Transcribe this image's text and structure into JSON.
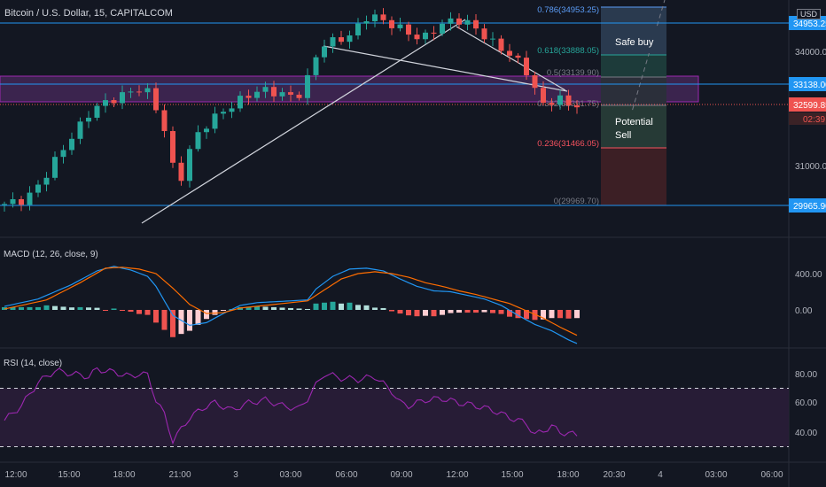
{
  "header": {
    "symbol": "Bitcoin / U.S. Dollar, 15, CAPITALCOM",
    "currency": "USD"
  },
  "price_axis": {
    "ticks": [
      "34000.00",
      "31000.00"
    ],
    "hlines": [
      {
        "label": "34953.25",
        "color": "#2196f3"
      },
      {
        "label": "33138.00",
        "color": "#2196f3"
      },
      {
        "label": "29965.90",
        "color": "#2196f3"
      }
    ],
    "last_price": {
      "label": "32599.85",
      "color": "#ef5350"
    },
    "countdown": "02:39"
  },
  "fibonacci": [
    {
      "label": "0.786(34953.25)",
      "color": "#5b9cf6"
    },
    {
      "label": "0.618(33888.05)",
      "color": "#26a69a"
    },
    {
      "label": "0.5(33139.90)",
      "color": "#787b86"
    },
    {
      "label": "0.382(32391.75)",
      "color": "#787b86"
    },
    {
      "label": "0.236(31466.05)",
      "color": "#f7525f"
    },
    {
      "label": "0(29969.70)",
      "color": "#787b86"
    }
  ],
  "annotations": {
    "safe_buy": "Safe buy",
    "potential_sell": "Potential Sell"
  },
  "macd": {
    "legend": "MACD (12, 26, close, 9)",
    "ticks": [
      "400.00",
      "0.00"
    ]
  },
  "rsi": {
    "legend": "RSI (14, close)",
    "ticks": [
      "80.00",
      "60.00",
      "40.00"
    ]
  },
  "time_axis": [
    "12:00",
    "15:00",
    "18:00",
    "21:00",
    "3",
    "03:00",
    "06:00",
    "09:00",
    "12:00",
    "15:00",
    "18:00",
    "20:30",
    "4",
    "03:00",
    "06:00"
  ],
  "colors": {
    "up": "#26a69a",
    "down": "#ef5350",
    "macd": "#2196f3",
    "signal": "#ff6d00",
    "rsi": "#9c27b0",
    "band": "#4a2a5e"
  },
  "chart_data": {
    "type": "candlestick",
    "price_path": [
      [
        0,
        29970
      ],
      [
        3,
        30100
      ],
      [
        5,
        30600
      ],
      [
        7,
        31300
      ],
      [
        9,
        31900
      ],
      [
        11,
        32500
      ],
      [
        13,
        32700
      ],
      [
        15,
        32900
      ],
      [
        17,
        33050
      ],
      [
        18,
        32800
      ],
      [
        20,
        31650
      ],
      [
        21,
        30300
      ],
      [
        22,
        31100
      ],
      [
        23,
        31700
      ],
      [
        25,
        32200
      ],
      [
        27,
        32500
      ],
      [
        29,
        32800
      ],
      [
        31,
        33000
      ],
      [
        33,
        32900
      ],
      [
        35,
        32800
      ],
      [
        36,
        32950
      ],
      [
        37,
        33600
      ],
      [
        38,
        34150
      ],
      [
        40,
        34300
      ],
      [
        42,
        34450
      ],
      [
        43,
        34850
      ],
      [
        44,
        34950
      ],
      [
        46,
        34750
      ],
      [
        48,
        34550
      ],
      [
        50,
        34300
      ],
      [
        52,
        34650
      ],
      [
        54,
        34850
      ],
      [
        56,
        34700
      ],
      [
        58,
        34300
      ],
      [
        60,
        34000
      ],
      [
        62,
        33650
      ],
      [
        63,
        33300
      ],
      [
        64,
        32700
      ],
      [
        65,
        32500
      ],
      [
        66,
        32900
      ],
      [
        67,
        32600
      ],
      [
        68,
        32599.85
      ]
    ],
    "macd_path": [
      [
        0,
        40
      ],
      [
        4,
        120
      ],
      [
        8,
        280
      ],
      [
        11,
        430
      ],
      [
        13,
        480
      ],
      [
        15,
        440
      ],
      [
        17,
        370
      ],
      [
        18,
        260
      ],
      [
        20,
        -60
      ],
      [
        22,
        -170
      ],
      [
        24,
        -140
      ],
      [
        26,
        -40
      ],
      [
        28,
        50
      ],
      [
        30,
        80
      ],
      [
        32,
        90
      ],
      [
        34,
        100
      ],
      [
        36,
        110
      ],
      [
        37,
        230
      ],
      [
        39,
        370
      ],
      [
        41,
        450
      ],
      [
        43,
        460
      ],
      [
        45,
        430
      ],
      [
        47,
        340
      ],
      [
        49,
        260
      ],
      [
        51,
        210
      ],
      [
        53,
        200
      ],
      [
        55,
        160
      ],
      [
        57,
        120
      ],
      [
        59,
        50
      ],
      [
        61,
        -60
      ],
      [
        63,
        -160
      ],
      [
        65,
        -230
      ],
      [
        67,
        -330
      ],
      [
        68,
        -370
      ]
    ],
    "signal_path": [
      [
        0,
        10
      ],
      [
        5,
        110
      ],
      [
        9,
        300
      ],
      [
        12,
        460
      ],
      [
        14,
        470
      ],
      [
        16,
        450
      ],
      [
        18,
        400
      ],
      [
        20,
        240
      ],
      [
        22,
        60
      ],
      [
        24,
        -40
      ],
      [
        26,
        -30
      ],
      [
        28,
        20
      ],
      [
        30,
        40
      ],
      [
        32,
        60
      ],
      [
        34,
        80
      ],
      [
        36,
        100
      ],
      [
        38,
        220
      ],
      [
        40,
        340
      ],
      [
        42,
        400
      ],
      [
        44,
        420
      ],
      [
        46,
        400
      ],
      [
        48,
        360
      ],
      [
        50,
        300
      ],
      [
        52,
        260
      ],
      [
        54,
        210
      ],
      [
        56,
        170
      ],
      [
        58,
        120
      ],
      [
        60,
        70
      ],
      [
        62,
        -10
      ],
      [
        64,
        -90
      ],
      [
        66,
        -190
      ],
      [
        68,
        -280
      ]
    ],
    "rsi_path": [
      [
        0,
        48
      ],
      [
        2,
        58
      ],
      [
        4,
        74
      ],
      [
        6,
        82
      ],
      [
        8,
        80
      ],
      [
        10,
        78
      ],
      [
        11,
        83
      ],
      [
        13,
        81
      ],
      [
        15,
        78
      ],
      [
        16,
        80
      ],
      [
        17,
        79
      ],
      [
        18,
        62
      ],
      [
        19,
        52
      ],
      [
        20,
        34
      ],
      [
        21,
        42
      ],
      [
        22,
        50
      ],
      [
        23,
        54
      ],
      [
        24,
        58
      ],
      [
        25,
        60
      ],
      [
        27,
        55
      ],
      [
        29,
        60
      ],
      [
        31,
        62
      ],
      [
        33,
        58
      ],
      [
        35,
        56
      ],
      [
        36,
        63
      ],
      [
        37,
        72
      ],
      [
        38,
        80
      ],
      [
        40,
        77
      ],
      [
        42,
        76
      ],
      [
        44,
        78
      ],
      [
        45,
        73
      ],
      [
        46,
        68
      ],
      [
        47,
        60
      ],
      [
        48,
        58
      ],
      [
        50,
        62
      ],
      [
        52,
        63
      ],
      [
        54,
        60
      ],
      [
        56,
        58
      ],
      [
        58,
        55
      ],
      [
        60,
        50
      ],
      [
        62,
        46
      ],
      [
        63,
        38
      ],
      [
        64,
        41
      ],
      [
        65,
        44
      ],
      [
        66,
        40
      ],
      [
        68,
        38
      ]
    ],
    "rsi_bands": [
      70,
      30
    ],
    "x_range": [
      0,
      68
    ]
  }
}
